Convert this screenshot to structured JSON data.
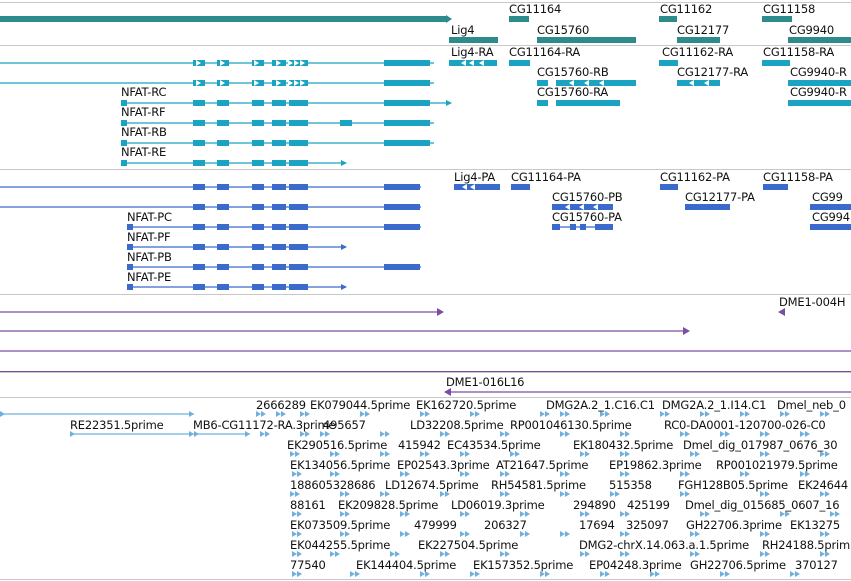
{
  "colors": {
    "gene": "#2e8b8b",
    "mrna": "#1ba3c2",
    "protein": "#3a6bcc",
    "clone": "#7a4fa3",
    "est": "#6fb0dc",
    "separator": "#c8c8c8",
    "text": "#111111"
  },
  "tracks": {
    "genes": {
      "labels": [
        "CG11164",
        "CG11162",
        "CG11158",
        "Lig4",
        "CG15760",
        "CG12177",
        "CG9940"
      ]
    },
    "mrna": {
      "labels": [
        "Lig4-RA",
        "CG11164-RA",
        "CG11162-RA",
        "CG11158-RA",
        "CG15760-RB",
        "CG12177-RA",
        "CG9940-R",
        "CG15760-RA",
        "NFAT-RC",
        "CG9940-R",
        "NFAT-RF",
        "NFAT-RB",
        "NFAT-RE"
      ]
    },
    "proteins": {
      "labels": [
        "Lig4-PA",
        "CG11164-PA",
        "CG11162-PA",
        "CG11158-PA",
        "CG15760-PB",
        "CG12177-PA",
        "CG99",
        "CG15760-PA",
        "NFAT-PC",
        "CG994",
        "NFAT-PF",
        "NFAT-PB",
        "NFAT-PE"
      ]
    },
    "clones": {
      "labels": [
        "DME1-004H",
        "DME1-016L16"
      ]
    },
    "ests": {
      "labels": [
        "2666289",
        "EK079044.5prime",
        "EK162720.5prime",
        "DMG2A.2_1.C16.C1",
        "DMG2A.2_1.I14.C1",
        "Dmel_neb_0",
        "RE22351.5prime",
        "MB6-CG11172-RA.3prime",
        "495657",
        "LD32208.5prime",
        "RP001046130.5prime",
        "RC0-DA0001-120700-026-C0",
        "EK290516.5prime",
        "415942",
        "EC43534.5prime",
        "EK180432.5prime",
        "Dmel_dig_017987_0676_30",
        "EK134056.5prime",
        "EP02543.3prime",
        "AT21647.5prime",
        "EP19862.3prime",
        "RP001021979.5prime",
        "188605328686",
        "LD12674.5prime",
        "RH54581.5prime",
        "515358",
        "FGH128B05.5prime",
        "EK24644",
        "88161",
        "EK209828.5prime",
        "LD06019.3prime",
        "294890",
        "425199",
        "Dmel_dig_015685_0607_16",
        "EK073509.5prime",
        "479999",
        "206327",
        "17694",
        "325097",
        "GH22706.3prime",
        "EK13275",
        "EK044255.5prime",
        "EK227504.5prime",
        "DMG2-chrX.14.063.a.1.5prime",
        "RH24188.5prim",
        "77540",
        "EK144404.5prime",
        "EK157352.5prime",
        "EP04248.3prime",
        "GH22706.5prime",
        "370127"
      ]
    }
  }
}
